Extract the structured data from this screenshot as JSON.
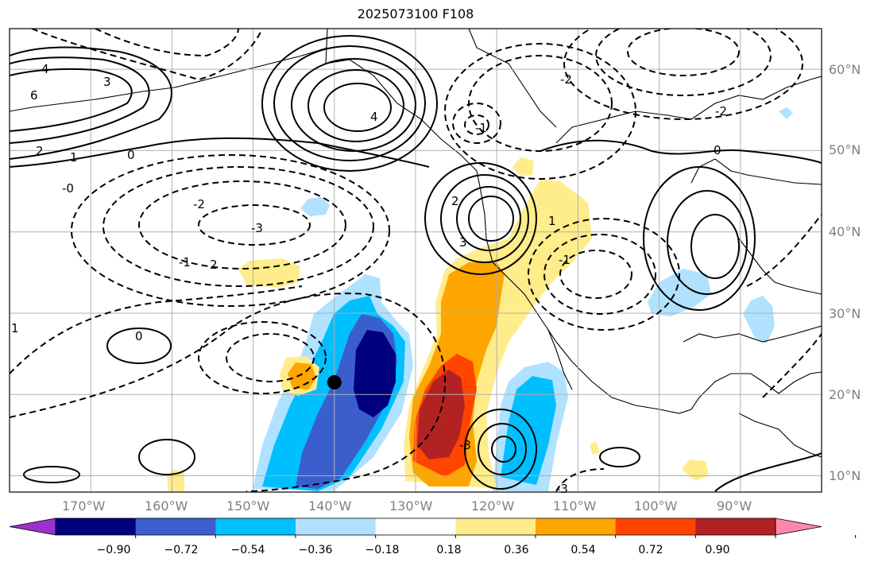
{
  "title": "2025073100 F108",
  "map": {
    "lon_range": [
      -180,
      -80
    ],
    "lat_range": [
      8,
      65
    ],
    "lat_labels": [
      "10°N",
      "20°N",
      "30°N",
      "40°N",
      "50°N",
      "60°N"
    ],
    "lon_labels": [
      "170°W",
      "160°W",
      "150°W",
      "140°W",
      "130°W",
      "120°W",
      "110°W",
      "100°W",
      "90°W"
    ],
    "marker": {
      "lon": -140,
      "lat": 21.5,
      "label": ""
    }
  },
  "colorbar": {
    "ticks": [
      "−0.90",
      "−0.72",
      "−0.54",
      "−0.36",
      "−0.18",
      "0.18",
      "0.36",
      "0.54",
      "0.72",
      "0.90"
    ],
    "colors": [
      "#9932cc",
      "#000080",
      "#3a5fcd",
      "#00bfff",
      "#b0e2ff",
      "#ffffff",
      "#ffec8b",
      "#ffa500",
      "#ff4500",
      "#b22222",
      "#ff88aa"
    ]
  },
  "contour_labels": [
    "6",
    "4",
    "3",
    "2",
    "1",
    "0",
    "-0",
    "-1",
    "-2",
    "-3",
    "2",
    "1",
    "0",
    "4",
    "3",
    "2",
    "-1",
    "-2",
    "0",
    "1",
    "-1",
    "-2",
    "-3",
    "-3"
  ],
  "palette": {
    "neg_strong": "#000080",
    "neg_mid": "#3a5fcd",
    "neg_light": "#00bfff",
    "neg_pale": "#b0e2ff",
    "pos_pale": "#ffec8b",
    "pos_light": "#ffa500",
    "pos_mid": "#ff4500",
    "pos_strong": "#b22222"
  }
}
